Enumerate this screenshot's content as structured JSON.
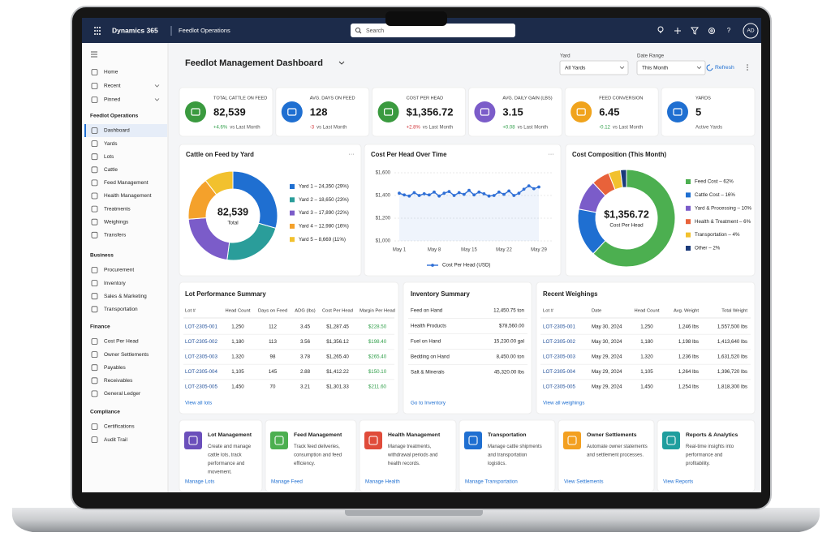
{
  "topbar": {
    "app": "Dynamics 365",
    "area": "Feedlot Operations",
    "search": "Search",
    "avatar": "AD"
  },
  "sidebar": {
    "top": [
      "Home",
      "Recent",
      "Pinned"
    ],
    "groups": [
      {
        "title": "Feedlot Operations",
        "items": [
          "Dashboard",
          "Yards",
          "Lots",
          "Cattle",
          "Feed Management",
          "Health Management",
          "Treatments",
          "Weighings",
          "Transfers"
        ]
      },
      {
        "title": "Business",
        "items": [
          "Procurement",
          "Inventory",
          "Sales & Marketing",
          "Transportation"
        ]
      },
      {
        "title": "Finance",
        "items": [
          "Cost Per Head",
          "Owner Settlements",
          "Payables",
          "Receivables",
          "General Ledger"
        ]
      },
      {
        "title": "Compliance",
        "items": [
          "Certifications",
          "Audit Trail"
        ]
      }
    ]
  },
  "header": {
    "title": "Feedlot Management Dashboard",
    "filters": [
      {
        "label": "Yard",
        "value": "All Yards"
      },
      {
        "label": "Date Range",
        "value": "This Month"
      }
    ],
    "refresh": "Refresh"
  },
  "kpis": [
    {
      "label": "TOTAL CATTLE ON FEED",
      "value": "82,539",
      "delta": "+4.6%",
      "note": "vs Last Month",
      "color": "#3a9a3f",
      "delta_color": "#2e9e48"
    },
    {
      "label": "AVG. DAYS ON FEED",
      "value": "128",
      "delta": "-3",
      "note": "vs Last Month",
      "color": "#1f6fd1",
      "delta_color": "#d13438"
    },
    {
      "label": "COST PER HEAD",
      "value": "$1,356.72",
      "delta": "+2.8%",
      "note": "vs Last Month",
      "color": "#3a9a3f",
      "delta_color": "#d13438"
    },
    {
      "label": "AVG. DAILY GAIN (LBS)",
      "value": "3.15",
      "delta": "+0.08",
      "note": "vs Last Month",
      "color": "#7b5cc9",
      "delta_color": "#2e9e48"
    },
    {
      "label": "FEED CONVERSION",
      "value": "6.45",
      "delta": "-0.12",
      "note": "vs Last Month",
      "color": "#f0a31c",
      "delta_color": "#2e9e48"
    },
    {
      "label": "YARDS",
      "value": "5",
      "note": "Active Yards",
      "color": "#1f6fd1"
    }
  ],
  "chart_data": [
    {
      "type": "pie",
      "title": "Cattle on Feed by Yard",
      "center_text": "82,539",
      "center_subtext": "Total",
      "categories": [
        "Yard 1 – 24,350 (29%)",
        "Yard 2 – 18,650 (23%)",
        "Yard 3 – 17,890 (22%)",
        "Yard 4 – 12,980 (16%)",
        "Yard 5 – 8,669 (11%)"
      ],
      "values": [
        24350,
        18650,
        17890,
        12980,
        8669
      ],
      "colors": [
        "#1f6fd1",
        "#2a9d9a",
        "#7b5cc9",
        "#f4a12b",
        "#f2c12e"
      ]
    },
    {
      "type": "line",
      "title": "Cost Per Head Over Time",
      "x": [
        "May 1",
        null,
        null,
        null,
        null,
        null,
        null,
        "May 8",
        null,
        null,
        null,
        null,
        null,
        null,
        "May 15",
        null,
        null,
        null,
        null,
        null,
        null,
        "May 22",
        null,
        null,
        null,
        null,
        null,
        null,
        "May 29"
      ],
      "series": [
        {
          "name": "Cost Per Head (USD)",
          "color": "#2f6fd6",
          "values": [
            1420,
            1405,
            1395,
            1425,
            1400,
            1415,
            1405,
            1430,
            1395,
            1420,
            1435,
            1400,
            1425,
            1410,
            1445,
            1405,
            1430,
            1415,
            1395,
            1400,
            1430,
            1410,
            1440,
            1400,
            1420,
            1455,
            1485,
            1460,
            1475
          ]
        }
      ],
      "ylim": [
        1000,
        1600
      ],
      "yticks": [
        {
          "value": 1000,
          "label": "$1,000"
        },
        {
          "value": 1200,
          "label": "$1,200"
        },
        {
          "value": 1400,
          "label": "$1,400"
        },
        {
          "value": 1600,
          "label": "$1,600"
        }
      ],
      "grid": true,
      "legend": "bottom"
    },
    {
      "type": "pie",
      "title": "Cost Composition (This Month)",
      "center_text": "$1,356.72",
      "center_subtext": "Cost Per Head",
      "categories": [
        "Feed Cost – 62%",
        "Cattle Cost – 16%",
        "Yard & Processing – 10%",
        "Health & Treatment – 6%",
        "Transportation – 4%",
        "Other – 2%"
      ],
      "values": [
        62,
        16,
        10,
        6,
        4,
        2
      ],
      "colors": [
        "#4caf50",
        "#1f6fd1",
        "#7b5cc9",
        "#e8623a",
        "#f2c12e",
        "#1a3a7a"
      ]
    }
  ],
  "lot_performance": {
    "title": "Lot Performance Summary",
    "columns": [
      "Lot #",
      "Head Count",
      "Days on Feed",
      "ADG (lbs)",
      "Cost Per Head",
      "Margin Per Head"
    ],
    "rows": [
      [
        "LOT-2305-001",
        "1,250",
        "112",
        "3.45",
        "$1,287.45",
        "$228.50"
      ],
      [
        "LOT-2305-002",
        "1,180",
        "113",
        "3.56",
        "$1,356.12",
        "$198.40"
      ],
      [
        "LOT-2305-003",
        "1,320",
        "98",
        "3.78",
        "$1,265.40",
        "$265.40"
      ],
      [
        "LOT-2305-004",
        "1,105",
        "145",
        "2.88",
        "$1,412.22",
        "$150.10"
      ],
      [
        "LOT-2305-005",
        "1,450",
        "70",
        "3.21",
        "$1,301.33",
        "$211.60"
      ]
    ],
    "link": "View all lots"
  },
  "inventory": {
    "title": "Inventory Summary",
    "rows": [
      [
        "Feed on Hand",
        "12,450.75 ton"
      ],
      [
        "Health Products",
        "$78,560.00"
      ],
      [
        "Fuel on Hand",
        "15,230.00 gal"
      ],
      [
        "Bedding on Hand",
        "8,450.00 ton"
      ],
      [
        "Salt & Minerals",
        "45,320.00 lbs"
      ]
    ],
    "link": "Go to Inventory"
  },
  "weighings": {
    "title": "Recent Weighings",
    "columns": [
      "Lot #",
      "Date",
      "Head Count",
      "Avg. Weight",
      "Total Weight"
    ],
    "rows": [
      [
        "LOT-2305-001",
        "May 30, 2024",
        "1,250",
        "1,246 lbs",
        "1,557,500 lbs"
      ],
      [
        "LOT-2305-002",
        "May 30, 2024",
        "1,180",
        "1,198 lbs",
        "1,413,640 lbs"
      ],
      [
        "LOT-2305-003",
        "May 29, 2024",
        "1,320",
        "1,236 lbs",
        "1,631,520 lbs"
      ],
      [
        "LOT-2305-004",
        "May 29, 2024",
        "1,105",
        "1,264 lbs",
        "1,396,720 lbs"
      ],
      [
        "LOT-2305-005",
        "May 29, 2024",
        "1,450",
        "1,254 lbs",
        "1,818,300 lbs"
      ]
    ],
    "link": "View all weighings"
  },
  "modules": [
    {
      "title": "Lot Management",
      "text": "Create and manage cattle lots, track performance and movement.",
      "link": "Manage Lots",
      "color": "#6b4fbb"
    },
    {
      "title": "Feed Management",
      "text": "Track feed deliveries, consumption and feed efficiency.",
      "link": "Manage Feed",
      "color": "#4caf50"
    },
    {
      "title": "Health Management",
      "text": "Manage treatments, withdrawal periods and health records.",
      "link": "Manage Health",
      "color": "#e04b3a"
    },
    {
      "title": "Transportation",
      "text": "Manage cattle shipments and transportation logistics.",
      "link": "Manage Transportation",
      "color": "#1f6fd1"
    },
    {
      "title": "Owner Settlements",
      "text": "Automate owner statements and settlement processes.",
      "link": "View Settlements",
      "color": "#f3a020"
    },
    {
      "title": "Reports & Analytics",
      "text": "Real-time insights into performance and profitability.",
      "link": "View Reports",
      "color": "#1f9e9e"
    }
  ]
}
